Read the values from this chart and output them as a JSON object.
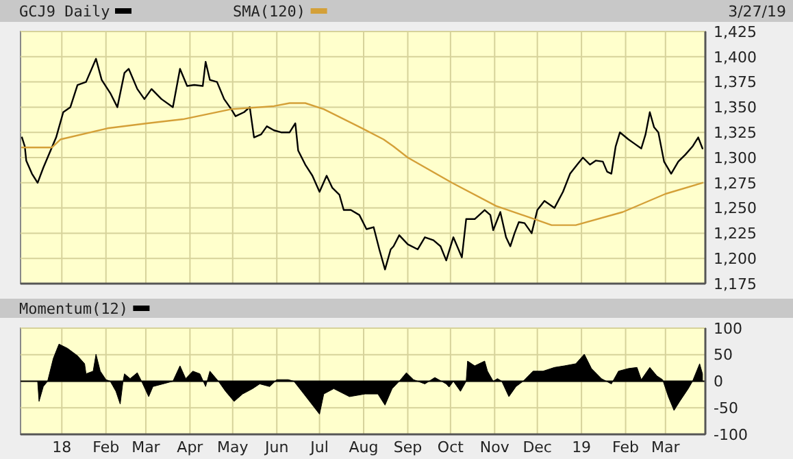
{
  "chart_data": [
    {
      "type": "line",
      "annotations": [
        "3/27/19"
      ],
      "legend": "top left",
      "grid": true,
      "tick_labels": "y",
      "xlim": [
        "2017-12-03",
        "2019-03-29"
      ],
      "ylim": [
        1175,
        1425
      ],
      "xticks": [
        {
          "value": "2018-01-01",
          "label": null
        },
        {
          "value": "2018-02-01",
          "label": null
        },
        {
          "value": "2018-03-01",
          "label": null
        },
        {
          "value": "2018-04-01",
          "label": null
        },
        {
          "value": "2018-05-01",
          "label": null
        },
        {
          "value": "2018-06-01",
          "label": null
        },
        {
          "value": "2018-07-01",
          "label": null
        },
        {
          "value": "2018-08-01",
          "label": null
        },
        {
          "value": "2018-09-01",
          "label": null
        },
        {
          "value": "2018-10-01",
          "label": null
        },
        {
          "value": "2018-11-01",
          "label": null
        },
        {
          "value": "2018-12-01",
          "label": null
        },
        {
          "value": "2019-01-01",
          "label": null
        },
        {
          "value": "2019-02-01",
          "label": null
        },
        {
          "value": "2019-03-01",
          "label": null
        }
      ],
      "yticks": [
        {
          "value": 1175,
          "label": "1,175"
        },
        {
          "value": 1200,
          "label": "1,200"
        },
        {
          "value": 1225,
          "label": "1,225"
        },
        {
          "value": 1250,
          "label": "1,250"
        },
        {
          "value": 1275,
          "label": "1,275"
        },
        {
          "value": 1300,
          "label": "1,300"
        },
        {
          "value": 1325,
          "label": "1,325"
        },
        {
          "value": 1350,
          "label": "1,350"
        },
        {
          "value": 1375,
          "label": "1,375"
        },
        {
          "value": 1400,
          "label": "1,400"
        },
        {
          "value": 1425,
          "label": "1,425"
        }
      ],
      "series": [
        {
          "name": "GCJ9 Daily",
          "color": "#000000",
          "x": [
            "2017-12-04",
            "2017-12-06",
            "2017-12-07",
            "2017-12-11",
            "2017-12-15",
            "2017-12-19",
            "2017-12-22",
            "2017-12-28",
            "2018-01-02",
            "2018-01-07",
            "2018-01-12",
            "2018-01-18",
            "2018-01-25",
            "2018-01-29",
            "2018-02-04",
            "2018-02-09",
            "2018-02-14",
            "2018-02-17",
            "2018-02-23",
            "2018-02-28",
            "2018-03-05",
            "2018-03-12",
            "2018-03-20",
            "2018-03-25",
            "2018-03-30",
            "2018-04-04",
            "2018-04-10",
            "2018-04-12",
            "2018-04-15",
            "2018-04-20",
            "2018-04-25",
            "2018-04-30",
            "2018-05-03",
            "2018-05-09",
            "2018-05-13",
            "2018-05-16",
            "2018-05-21",
            "2018-05-25",
            "2018-05-30",
            "2018-06-04",
            "2018-06-10",
            "2018-06-14",
            "2018-06-16",
            "2018-06-21",
            "2018-06-26",
            "2018-07-01",
            "2018-07-06",
            "2018-07-10",
            "2018-07-15",
            "2018-07-18",
            "2018-07-23",
            "2018-07-29",
            "2018-08-03",
            "2018-08-08",
            "2018-08-12",
            "2018-08-16",
            "2018-08-20",
            "2018-08-22",
            "2018-08-26",
            "2018-09-01",
            "2018-09-08",
            "2018-09-13",
            "2018-09-19",
            "2018-09-24",
            "2018-09-28",
            "2018-10-03",
            "2018-10-09",
            "2018-10-12",
            "2018-10-18",
            "2018-10-25",
            "2018-10-29",
            "2018-10-31",
            "2018-11-05",
            "2018-11-09",
            "2018-11-12",
            "2018-11-15",
            "2018-11-18",
            "2018-11-22",
            "2018-11-27",
            "2018-12-01",
            "2018-12-06",
            "2018-12-13",
            "2018-12-19",
            "2018-12-24",
            "2018-12-29",
            "2019-01-02",
            "2019-01-07",
            "2019-01-11",
            "2019-01-16",
            "2019-01-19",
            "2019-01-22",
            "2019-01-25",
            "2019-01-28",
            "2019-02-03",
            "2019-02-07",
            "2019-02-12",
            "2019-02-15",
            "2019-02-18",
            "2019-02-21",
            "2019-02-24",
            "2019-02-28",
            "2019-03-05",
            "2019-03-10",
            "2019-03-15",
            "2019-03-20",
            "2019-03-24",
            "2019-03-27"
          ],
          "values": [
            1320,
            1311,
            1297,
            1284,
            1275,
            1290,
            1300,
            1320,
            1345,
            1350,
            1372,
            1375,
            1398,
            1377,
            1364,
            1350,
            1384,
            1388,
            1368,
            1358,
            1368,
            1358,
            1350,
            1388,
            1371,
            1372,
            1371,
            1395,
            1377,
            1375,
            1358,
            1348,
            1341,
            1345,
            1350,
            1320,
            1323,
            1331,
            1327,
            1325,
            1325,
            1334,
            1307,
            1293,
            1282,
            1266,
            1282,
            1270,
            1263,
            1248,
            1248,
            1243,
            1229,
            1231,
            1209,
            1189,
            1209,
            1212,
            1223,
            1214,
            1209,
            1221,
            1218,
            1212,
            1198,
            1221,
            1201,
            1239,
            1239,
            1248,
            1243,
            1228,
            1246,
            1221,
            1212,
            1225,
            1236,
            1235,
            1225,
            1248,
            1257,
            1250,
            1266,
            1284,
            1293,
            1300,
            1293,
            1297,
            1296,
            1286,
            1284,
            1311,
            1325,
            1318,
            1314,
            1309,
            1323,
            1345,
            1330,
            1325,
            1296,
            1284,
            1296,
            1303,
            1311,
            1320,
            1309
          ]
        },
        {
          "name": "SMA(120)",
          "color": "#d4a038",
          "x": [
            "2017-12-04",
            "2017-12-25",
            "2017-12-31",
            "2018-02-02",
            "2018-03-02",
            "2018-03-27",
            "2018-04-30",
            "2018-05-30",
            "2018-06-10",
            "2018-06-21",
            "2018-07-04",
            "2018-07-31",
            "2018-08-15",
            "2018-08-22",
            "2018-09-01",
            "2018-10-02",
            "2018-11-02",
            "2018-11-29",
            "2018-12-11",
            "2018-12-28",
            "2019-01-30",
            "2019-03-01",
            "2019-03-27"
          ],
          "values": [
            1310,
            1310,
            1318,
            1329,
            1334,
            1338,
            1348,
            1351,
            1354,
            1354,
            1348,
            1329,
            1318,
            1311,
            1300,
            1275,
            1252,
            1239,
            1233,
            1233,
            1246,
            1264,
            1275
          ]
        }
      ]
    },
    {
      "type": "area",
      "legend": "top left",
      "grid": true,
      "xlim": [
        "2017-12-03",
        "2019-03-29"
      ],
      "ylim": [
        -100,
        100
      ],
      "xticks": [
        {
          "value": "2018-01-01",
          "label": "18"
        },
        {
          "value": "2018-02-01",
          "label": "Feb"
        },
        {
          "value": "2018-03-01",
          "label": "Mar"
        },
        {
          "value": "2018-04-01",
          "label": "Apr"
        },
        {
          "value": "2018-05-01",
          "label": "May"
        },
        {
          "value": "2018-06-01",
          "label": "Jun"
        },
        {
          "value": "2018-07-01",
          "label": "Jul"
        },
        {
          "value": "2018-08-01",
          "label": "Aug"
        },
        {
          "value": "2018-09-01",
          "label": "Sep"
        },
        {
          "value": "2018-10-01",
          "label": "Oct"
        },
        {
          "value": "2018-11-01",
          "label": "Nov"
        },
        {
          "value": "2018-12-01",
          "label": "Dec"
        },
        {
          "value": "2019-01-01",
          "label": "19"
        },
        {
          "value": "2019-02-01",
          "label": "Feb"
        },
        {
          "value": "2019-03-01",
          "label": "Mar"
        }
      ],
      "yticks": [
        -100,
        -50,
        0,
        50,
        100
      ],
      "ref_lines": [
        {
          "axis": "y",
          "value": 0,
          "color": "#000000"
        }
      ],
      "series": [
        {
          "name": "Momentum(12)",
          "color": "#000000",
          "x": [
            "2017-12-03",
            "2017-12-15",
            "2017-12-16",
            "2017-12-19",
            "2017-12-22",
            "2017-12-26",
            "2017-12-30",
            "2018-01-05",
            "2018-01-12",
            "2018-01-17",
            "2018-01-18",
            "2018-01-23",
            "2018-01-25",
            "2018-01-28",
            "2018-02-01",
            "2018-02-04",
            "2018-02-08",
            "2018-02-11",
            "2018-02-13",
            "2018-02-14",
            "2018-02-18",
            "2018-02-23",
            "2018-02-26",
            "2018-03-03",
            "2018-03-06",
            "2018-03-13",
            "2018-03-20",
            "2018-03-25",
            "2018-03-29",
            "2018-04-03",
            "2018-04-08",
            "2018-04-12",
            "2018-04-15",
            "2018-04-21",
            "2018-04-26",
            "2018-05-02",
            "2018-05-08",
            "2018-05-15",
            "2018-05-20",
            "2018-05-27",
            "2018-06-01",
            "2018-06-09",
            "2018-06-13",
            "2018-06-20",
            "2018-07-01",
            "2018-07-04",
            "2018-07-11",
            "2018-07-22",
            "2018-08-02",
            "2018-08-11",
            "2018-08-16",
            "2018-08-21",
            "2018-08-26",
            "2018-08-31",
            "2018-09-05",
            "2018-09-13",
            "2018-09-20",
            "2018-09-28",
            "2018-09-30",
            "2018-10-03",
            "2018-10-08",
            "2018-10-12",
            "2018-10-13",
            "2018-10-18",
            "2018-10-25",
            "2018-10-27",
            "2018-10-31",
            "2018-11-03",
            "2018-11-06",
            "2018-11-11",
            "2018-11-16",
            "2018-11-21",
            "2018-11-28",
            "2018-12-05",
            "2018-12-13",
            "2018-12-20",
            "2018-12-28",
            "2019-01-03",
            "2019-01-08",
            "2019-01-15",
            "2019-01-22",
            "2019-01-27",
            "2019-02-03",
            "2019-02-09",
            "2019-02-12",
            "2019-02-18",
            "2019-02-23",
            "2019-02-27",
            "2019-03-03",
            "2019-03-07",
            "2019-03-11",
            "2019-03-17",
            "2019-03-20",
            "2019-03-25",
            "2019-03-27"
          ],
          "values": [
            0,
            0,
            -38,
            -10,
            0,
            43,
            70,
            62,
            48,
            33,
            14,
            19,
            51,
            19,
            3,
            0,
            -19,
            -43,
            0,
            14,
            5,
            16,
            0,
            -29,
            -10,
            -5,
            0,
            29,
            5,
            19,
            14,
            -10,
            19,
            0,
            -19,
            -38,
            -24,
            -14,
            -5,
            -10,
            3,
            3,
            0,
            -24,
            -62,
            -24,
            -14,
            -29,
            -24,
            -24,
            -45,
            -14,
            0,
            16,
            3,
            -5,
            7,
            -5,
            -11,
            0,
            -19,
            0,
            38,
            29,
            38,
            19,
            0,
            5,
            0,
            -29,
            -10,
            0,
            19,
            19,
            26,
            29,
            33,
            51,
            24,
            5,
            -5,
            19,
            24,
            26,
            3,
            26,
            10,
            3,
            -29,
            -55,
            -38,
            -14,
            0,
            33,
            14
          ]
        }
      ]
    }
  ]
}
